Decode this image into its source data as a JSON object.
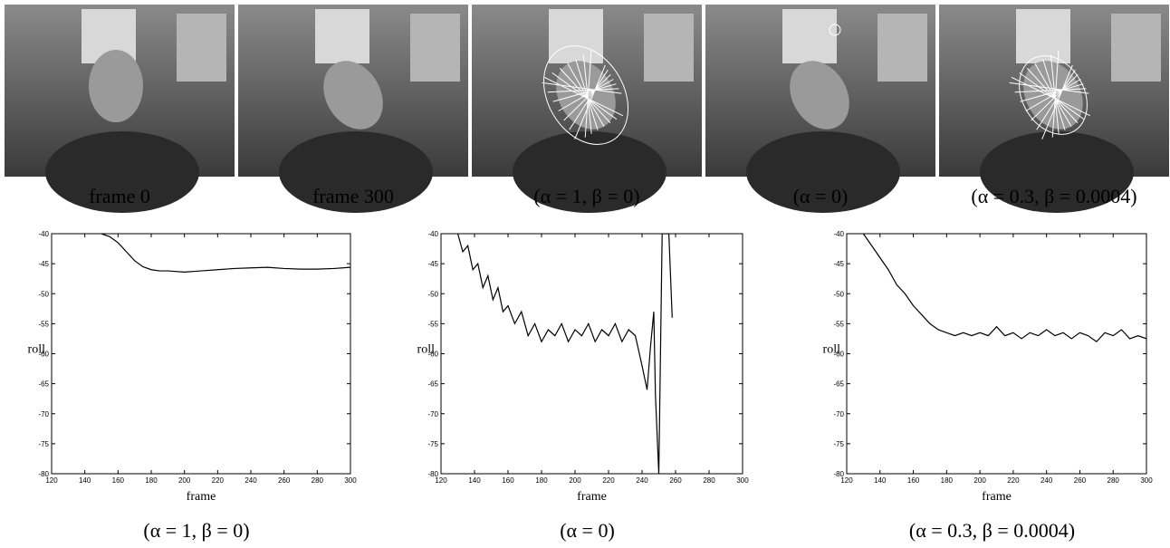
{
  "figure": {
    "images": [
      {
        "caption": "frame 0"
      },
      {
        "caption": "frame 300"
      },
      {
        "caption": "(α = 1, β = 0)"
      },
      {
        "caption": "(α = 0)"
      },
      {
        "caption": "(α = 0.3, β = 0.0004)"
      }
    ]
  },
  "chart_data": [
    {
      "type": "line",
      "xlabel": "frame",
      "ylabel": "roll",
      "caption": "(α = 1, β = 0)",
      "color": "#000000",
      "x": [
        150,
        155,
        160,
        165,
        170,
        175,
        180,
        185,
        190,
        200,
        210,
        220,
        230,
        240,
        250,
        260,
        270,
        280,
        290,
        300
      ],
      "values": [
        -40,
        -40.5,
        -41.5,
        -43,
        -44.5,
        -45.5,
        -46,
        -46.2,
        -46.2,
        -46.4,
        -46.2,
        -46.0,
        -45.8,
        -45.7,
        -45.6,
        -45.8,
        -45.9,
        -45.9,
        -45.8,
        -45.6
      ],
      "xlim": [
        120,
        300
      ],
      "ylim": [
        -80,
        -40
      ],
      "xticks": [
        120,
        140,
        160,
        180,
        200,
        220,
        240,
        260,
        280,
        300
      ],
      "yticks": [
        -40,
        -45,
        -50,
        -55,
        -60,
        -65,
        -70,
        -75,
        -80
      ]
    },
    {
      "type": "line",
      "xlabel": "frame",
      "ylabel": "roll",
      "caption": "(α = 0)",
      "color": "#000000",
      "x": [
        130,
        133,
        136,
        139,
        142,
        145,
        148,
        151,
        154,
        157,
        160,
        164,
        168,
        172,
        176,
        180,
        184,
        188,
        192,
        196,
        200,
        204,
        208,
        212,
        216,
        220,
        224,
        228,
        232,
        236,
        240,
        243,
        245,
        247,
        248,
        250,
        251,
        252,
        254,
        256,
        258
      ],
      "values": [
        -40,
        -43,
        -42,
        -46,
        -45,
        -49,
        -47,
        -51,
        -49,
        -53,
        -52,
        -55,
        -53,
        -57,
        -55,
        -58,
        -56,
        -57,
        -55,
        -58,
        -56,
        -57,
        -55,
        -58,
        -56,
        -57,
        -55,
        -58,
        -56,
        -57,
        -62,
        -66,
        -59,
        -53,
        -67,
        -80,
        -60,
        -40,
        -40,
        -40,
        -54
      ],
      "xlim": [
        120,
        300
      ],
      "ylim": [
        -80,
        -40
      ],
      "xticks": [
        120,
        140,
        160,
        180,
        200,
        220,
        240,
        260,
        280,
        300
      ],
      "yticks": [
        -40,
        -45,
        -50,
        -55,
        -60,
        -65,
        -70,
        -75,
        -80
      ]
    },
    {
      "type": "line",
      "xlabel": "frame",
      "ylabel": "roll",
      "caption": "(α = 0.3, β = 0.0004)",
      "color": "#000000",
      "x": [
        130,
        135,
        140,
        145,
        150,
        155,
        160,
        165,
        170,
        175,
        180,
        185,
        190,
        195,
        200,
        205,
        210,
        215,
        220,
        225,
        230,
        235,
        240,
        245,
        250,
        255,
        260,
        265,
        270,
        275,
        280,
        285,
        290,
        295,
        300
      ],
      "values": [
        -40,
        -42,
        -44,
        -46,
        -48.5,
        -50,
        -52,
        -53.5,
        -55,
        -56,
        -56.5,
        -57,
        -56.5,
        -57,
        -56.5,
        -57,
        -55.5,
        -57,
        -56.5,
        -57.5,
        -56.5,
        -57,
        -56,
        -57,
        -56.5,
        -57.5,
        -56.5,
        -57,
        -58,
        -56.5,
        -57,
        -56,
        -57.5,
        -57,
        -57.5
      ],
      "xlim": [
        120,
        300
      ],
      "ylim": [
        -80,
        -40
      ],
      "xticks": [
        120,
        140,
        160,
        180,
        200,
        220,
        240,
        260,
        280,
        300
      ],
      "yticks": [
        -40,
        -45,
        -50,
        -55,
        -60,
        -65,
        -70,
        -75,
        -80
      ]
    }
  ]
}
